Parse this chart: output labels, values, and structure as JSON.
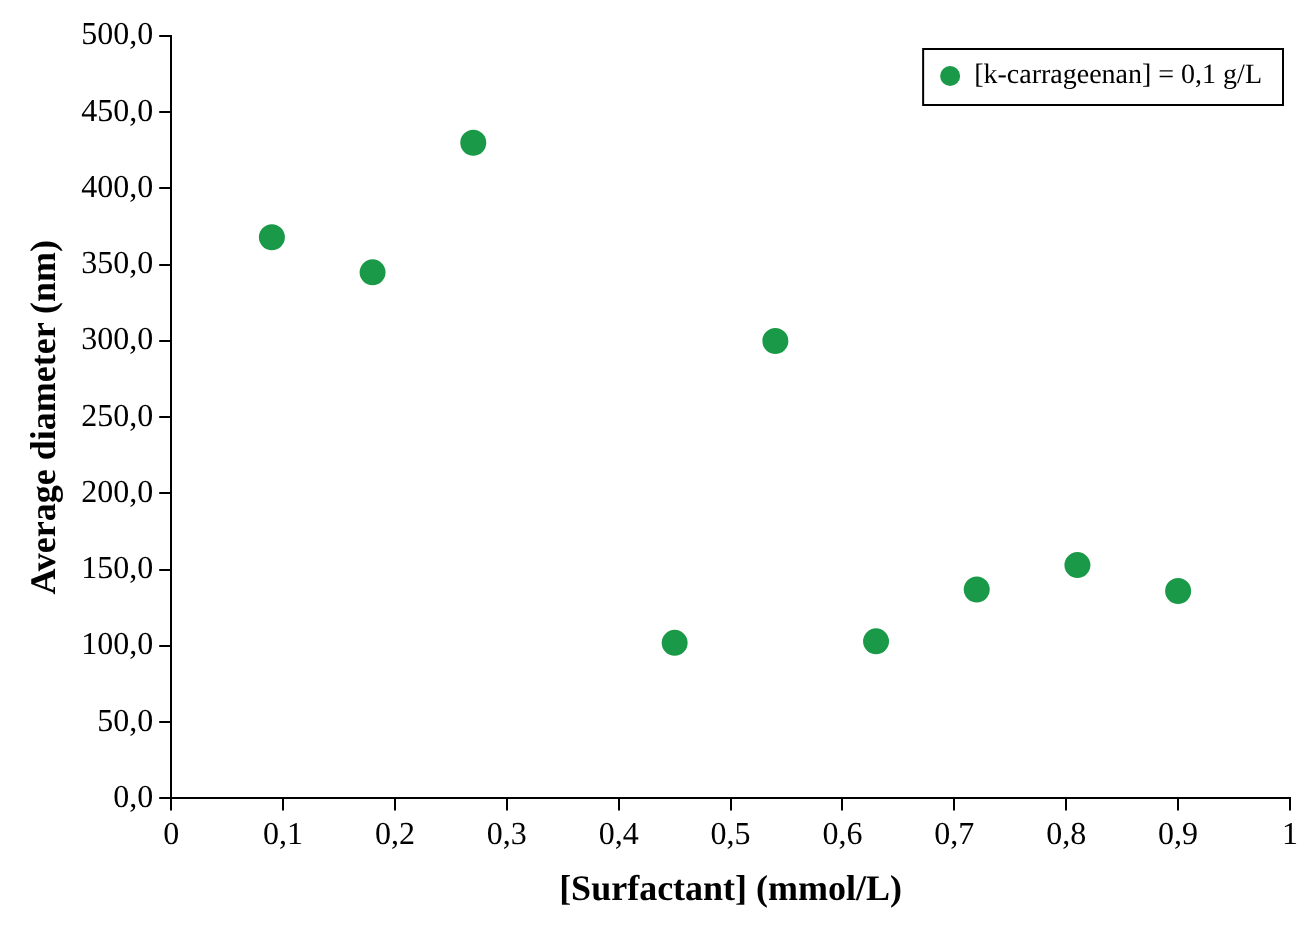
{
  "chart_data": {
    "type": "scatter",
    "xlabel": "[Surfactant] (mmol/L)",
    "ylabel": "Average diameter (nm)",
    "x": [
      0.09,
      0.18,
      0.27,
      0.45,
      0.54,
      0.63,
      0.72,
      0.81,
      0.9
    ],
    "series": [
      {
        "name": "[k-carrageenan] = 0,1 g/L",
        "color": "#1a9a48",
        "values": [
          368,
          345,
          430,
          102,
          300,
          103,
          137,
          153,
          136
        ]
      }
    ],
    "xlim": [
      0,
      1
    ],
    "ylim": [
      0,
      500
    ],
    "xticks": [
      0,
      {
        "value": 0.1,
        "label": "0,1"
      },
      {
        "value": 0.2,
        "label": "0,2"
      },
      {
        "value": 0.3,
        "label": "0,3"
      },
      {
        "value": 0.4,
        "label": "0,4"
      },
      {
        "value": 0.5,
        "label": "0,5"
      },
      {
        "value": 0.6,
        "label": "0,6"
      },
      {
        "value": 0.7,
        "label": "0,7"
      },
      {
        "value": 0.8,
        "label": "0,8"
      },
      {
        "value": 0.9,
        "label": "0,9"
      },
      1
    ],
    "yticks": [
      {
        "value": 0,
        "label": "0,0"
      },
      {
        "value": 50,
        "label": "50,0"
      },
      {
        "value": 100,
        "label": "100,0"
      },
      {
        "value": 150,
        "label": "150,0"
      },
      {
        "value": 200,
        "label": "200,0"
      },
      {
        "value": 250,
        "label": "250,0"
      },
      {
        "value": 300,
        "label": "300,0"
      },
      {
        "value": 350,
        "label": "350,0"
      },
      {
        "value": 400,
        "label": "400,0"
      },
      {
        "value": 450,
        "label": "450,0"
      },
      {
        "value": 500,
        "label": "500,0"
      }
    ],
    "legend": "top right",
    "marker": "circle",
    "grid": false
  }
}
